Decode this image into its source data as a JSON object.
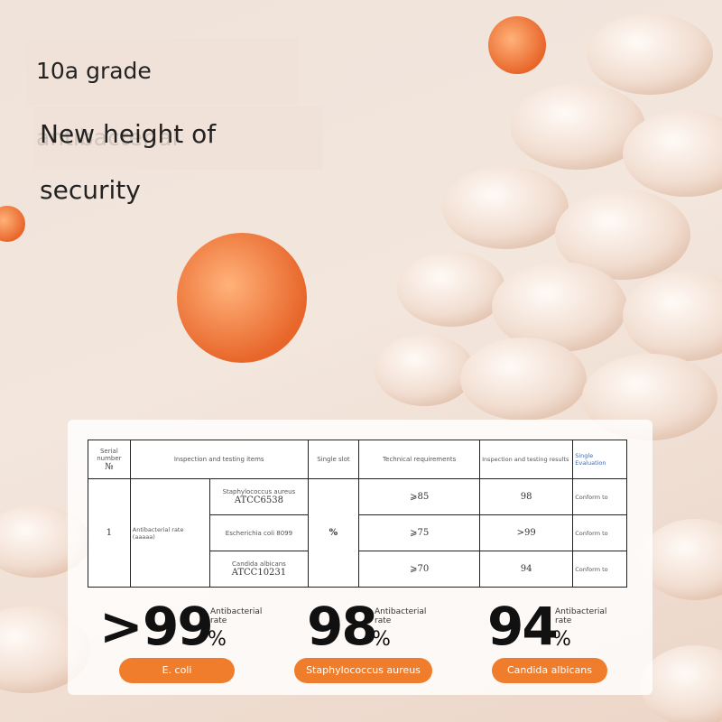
{
  "header": {
    "title": "10a grade antibacterial",
    "subtitle": "New height of security"
  },
  "table": {
    "headers": {
      "serial": "Serial number",
      "serial_symbol": "№",
      "items": "Inspection and testing items",
      "unit": "Single slot",
      "requirements": "Technical requirements",
      "results": "Inspection and testing results",
      "evaluation": "Single Evaluation"
    },
    "row": {
      "serial": "1",
      "item": "Antibacterial rate (aaaaa)",
      "unit": "%",
      "subitems": [
        {
          "name": "Staphylococcus aureus",
          "code": "ATCC6538",
          "requirement": "⩾85",
          "result": "98",
          "evaluation": "Conform to"
        },
        {
          "name": "Escherichia coli 8099",
          "requirement": "⩾75",
          "result": ">99",
          "evaluation": "Conform to"
        },
        {
          "name": "Candida albicans",
          "code": "ATCC10231",
          "requirement": "⩾70",
          "result": "94",
          "evaluation": "Conform to"
        }
      ]
    }
  },
  "stats": [
    {
      "prefix": ">",
      "value": "99",
      "unit": "%",
      "label": "Antibacterial rate",
      "organism": "E. coli"
    },
    {
      "value": "98",
      "unit": "%",
      "label": "Antibacterial rate",
      "organism": "Staphylococcus aureus"
    },
    {
      "value": "94",
      "unit": "%",
      "label": "Antibacterial rate",
      "organism": "Candida albicans"
    }
  ]
}
